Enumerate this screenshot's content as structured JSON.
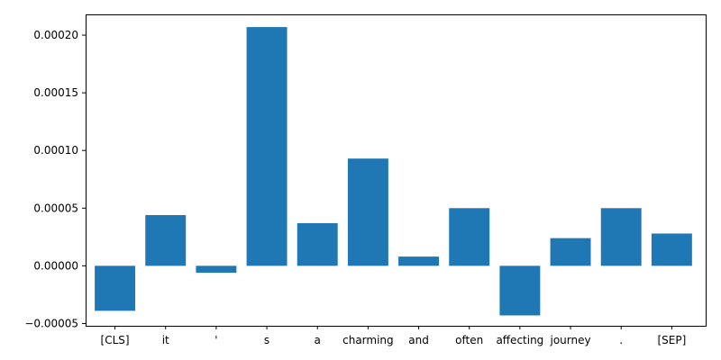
{
  "chart_data": {
    "type": "bar",
    "categories": [
      "[CLS]",
      "it",
      "'",
      "s",
      "a",
      "charming",
      "and",
      "often",
      "affecting",
      "journey",
      ".",
      "[SEP]"
    ],
    "values": [
      -3.9e-05,
      4.4e-05,
      -6e-06,
      0.000207,
      3.7e-05,
      9.3e-05,
      8e-06,
      5e-05,
      -4.3e-05,
      2.4e-05,
      5e-05,
      2.8e-05
    ],
    "yticks": [
      -5e-05,
      0.0,
      5e-05,
      0.0001,
      0.00015,
      0.0002
    ],
    "ytick_labels": [
      "−0.00005",
      "0.00000",
      "0.00005",
      "0.00010",
      "0.00015",
      "0.00020"
    ],
    "ylim": [
      -5.2e-05,
      0.000218
    ],
    "grid": false,
    "bar_color": "#1f77b4",
    "title": "",
    "xlabel": "",
    "ylabel": ""
  }
}
